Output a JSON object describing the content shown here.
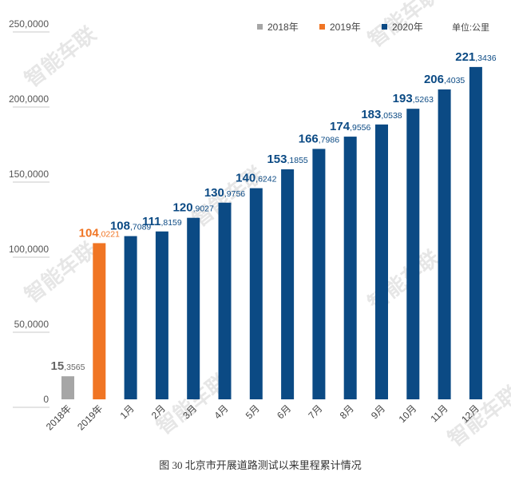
{
  "chart_data": {
    "type": "bar",
    "categories": [
      "2018年",
      "2019年",
      "1月",
      "2月",
      "3月",
      "4月",
      "5月",
      "6月",
      "7月",
      "8月",
      "9月",
      "10月",
      "11月",
      "12月"
    ],
    "values": [
      153565,
      1040221,
      1087089,
      1118159,
      1209027,
      1309756,
      1406242,
      1531855,
      1667986,
      1749556,
      1830538,
      1935263,
      2064035,
      2213436
    ],
    "label_int": [
      "15",
      "104",
      "108",
      "111",
      "120",
      "130",
      "140",
      "153",
      "166",
      "174",
      "183",
      "193",
      "206",
      "221"
    ],
    "label_frac": [
      "3565",
      "0221",
      "7089",
      "8159",
      "9027",
      "9756",
      "6242",
      "1855",
      "7986",
      "9556",
      "0538",
      "5263",
      "4035",
      "3436"
    ],
    "series_group": [
      "2018年",
      "2019年",
      "2020年",
      "2020年",
      "2020年",
      "2020年",
      "2020年",
      "2020年",
      "2020年",
      "2020年",
      "2020年",
      "2020年",
      "2020年",
      "2020年"
    ],
    "legend": [
      {
        "name": "2018年",
        "color": "#a6a6a6"
      },
      {
        "name": "2019年",
        "color": "#f07524"
      },
      {
        "name": "2020年",
        "color": "#0b4a84"
      }
    ],
    "label_colors": {
      "2018年": "#666666",
      "2019年": "#f07524",
      "2020年": "#0b4a84"
    },
    "ylim": [
      0,
      2500000
    ],
    "yticks": [
      0,
      500000,
      1000000,
      1500000,
      2000000,
      2500000
    ],
    "ytick_labels": [
      "0",
      "50,0000",
      "100,0000",
      "150,0000",
      "200,0000",
      "250,0000"
    ],
    "unit": "单位:公里",
    "title": "",
    "xlabel": "",
    "ylabel": "",
    "grid": false,
    "legend_position": "top-right",
    "caption": "图 30  北京市开展道路测试以来里程累计情况"
  },
  "watermark": {
    "text": "智能车联",
    "color": "#e6e6e6"
  }
}
